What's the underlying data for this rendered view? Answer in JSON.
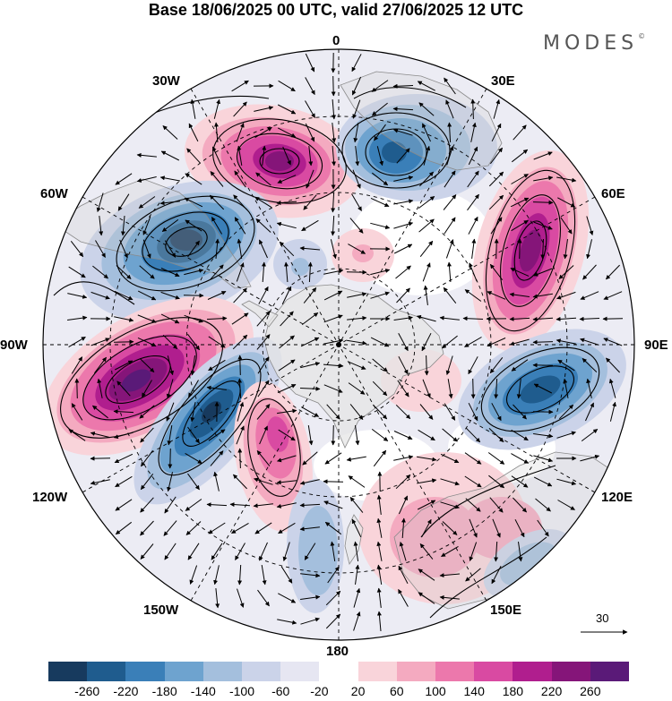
{
  "header": {
    "title": "Base 18/06/2025 00 UTC, valid 27/06/2025 12 UTC",
    "brand": "MODES",
    "brand_mark": "©"
  },
  "map": {
    "projection": "polar stereographic (south pole)",
    "longitude_labels": {
      "top": "0",
      "top_right": "30E",
      "right_upper": "60E",
      "right": "90E",
      "right_lower": "120E",
      "bottom_right": "150E",
      "bottom": "180",
      "bottom_left": "150W",
      "left_lower": "120W",
      "left": "90W",
      "left_upper": "60W",
      "top_left": "30W"
    },
    "reference_vector": "30",
    "colors": {
      "land": "#e6e6e6",
      "positive_strong": "#5a1a78",
      "negative_strong": "#173a5e"
    }
  },
  "colorbar": {
    "labels": [
      "-260",
      "-220",
      "-180",
      "-140",
      "-100",
      "-60",
      "-20",
      "20",
      "60",
      "100",
      "140",
      "180",
      "220",
      "260"
    ],
    "colors": [
      "#173a5e",
      "#1f5c8e",
      "#3a7fb8",
      "#6ea3cf",
      "#a4bfdd",
      "#cbd3e9",
      "#e6e6f2",
      "#ffffff",
      "#f9d4da",
      "#f4aac0",
      "#ec78ac",
      "#d94aa2",
      "#b01e8e",
      "#851579",
      "#5a1a78"
    ]
  }
}
